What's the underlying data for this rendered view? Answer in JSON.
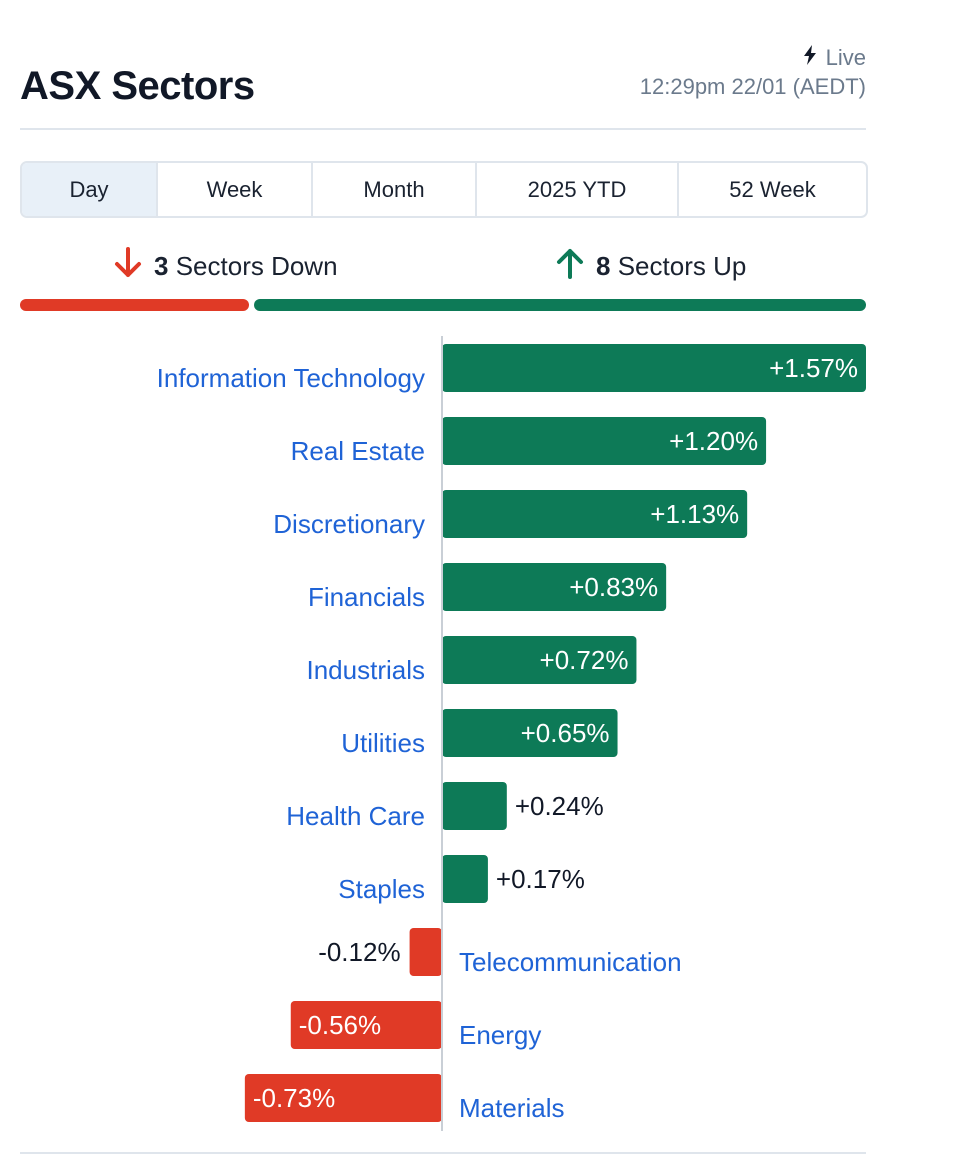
{
  "header": {
    "title": "ASX Sectors",
    "live_label": "Live",
    "live_icon": "lightning-bolt-icon",
    "timestamp": "12:29pm 22/01 (AEDT)"
  },
  "tabs": [
    {
      "label": "Day",
      "active": true
    },
    {
      "label": "Week",
      "active": false
    },
    {
      "label": "Month",
      "active": false
    },
    {
      "label": "2025 YTD",
      "active": false
    },
    {
      "label": "52 Week",
      "active": false
    }
  ],
  "summary": {
    "down_count": "3",
    "down_label": "Sectors Down",
    "down_icon": "arrow-down-icon",
    "up_count": "8",
    "up_label": "Sectors Up",
    "up_icon": "arrow-up-icon"
  },
  "colors": {
    "up": "#0d7a57",
    "down": "#e03a26",
    "label": "#1f63d6",
    "axis": "#c9cfd6"
  },
  "chart_data": {
    "type": "bar",
    "orientation": "horizontal",
    "unit": "%",
    "categories": [
      "Information Technology",
      "Real Estate",
      "Discretionary",
      "Financials",
      "Industrials",
      "Utilities",
      "Health Care",
      "Staples",
      "Telecommunication",
      "Energy",
      "Materials"
    ],
    "values": [
      1.57,
      1.2,
      1.13,
      0.83,
      0.72,
      0.65,
      0.24,
      0.17,
      -0.12,
      -0.56,
      -0.73
    ],
    "value_labels": [
      "+1.57%",
      "+1.20%",
      "+1.13%",
      "+0.83%",
      "+0.72%",
      "+0.65%",
      "+0.24%",
      "+0.17%",
      "-0.12%",
      "-0.56%",
      "-0.73%"
    ],
    "title": "",
    "xlabel": "",
    "ylabel": "",
    "grid": false,
    "legend": "none"
  }
}
